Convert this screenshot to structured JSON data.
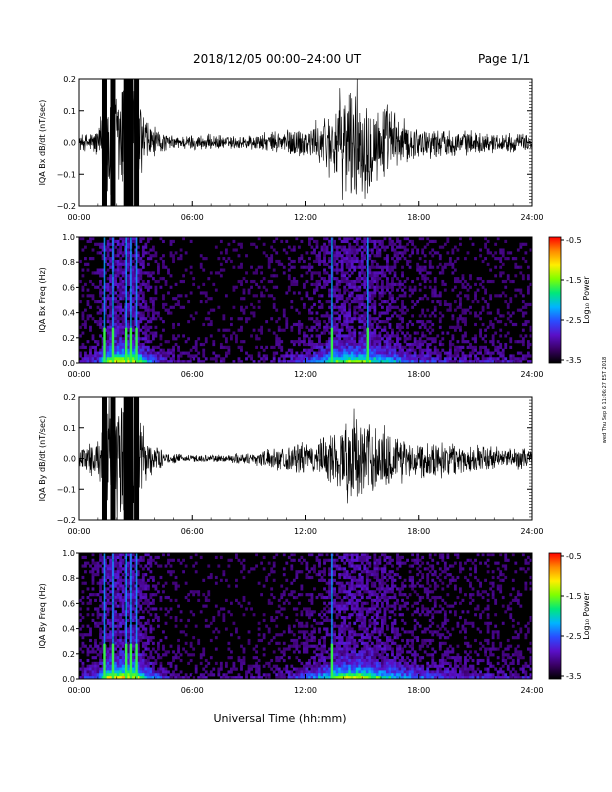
{
  "header": {
    "title": "2018/12/05  00:00–24:00 UT",
    "page": "Page 1/1"
  },
  "side_note": "wed Thu Sep 6 11:06:27 EST 2018",
  "colorbar": {
    "label": "Log₁₀ Power",
    "ticks": [
      "-0.5",
      "-1.5",
      "-2.5",
      "-3.5"
    ],
    "range": [
      -3.5,
      -0.5
    ],
    "colors": [
      "#000000",
      "#3a0066",
      "#5a10c8",
      "#2a4cff",
      "#00b4ff",
      "#00e87a",
      "#7fff00",
      "#ffee00",
      "#ff8a00",
      "#ff0000"
    ]
  },
  "xaxis": {
    "label": "Universal Time (hh:mm)",
    "ticks": [
      "00:00",
      "06:00",
      "12:00",
      "18:00",
      "24:00"
    ],
    "range_hours": [
      0,
      24
    ]
  },
  "chart_data": [
    {
      "type": "line",
      "ylabel": "IQA Bx dB/dt (nT/sec)",
      "ylim": [
        -0.2,
        0.2
      ],
      "yticks": [
        "0.2",
        "0.1",
        "0.0",
        "−0.1",
        "−0.2"
      ],
      "series": [
        {
          "x": [
            0,
            0.5,
            1.0,
            1.3,
            1.6,
            2.0,
            2.3,
            2.7,
            3.0,
            3.3,
            3.7,
            4.0,
            4.5,
            5.0,
            6.0,
            7.0,
            8.0,
            9.0,
            10.0,
            11.0,
            11.5,
            12.0,
            12.5,
            13.0,
            13.5,
            14.0,
            14.5,
            15.0,
            15.5,
            16.0,
            16.5,
            17.0,
            17.5,
            18.0,
            19.0,
            20.0,
            21.0,
            22.0,
            23.0,
            24.0
          ],
          "amplitude": [
            0.025,
            0.03,
            0.05,
            0.12,
            0.25,
            0.18,
            0.25,
            0.15,
            0.25,
            0.12,
            0.07,
            0.05,
            0.03,
            0.02,
            0.025,
            0.025,
            0.02,
            0.025,
            0.03,
            0.045,
            0.05,
            0.05,
            0.06,
            0.09,
            0.12,
            0.17,
            0.2,
            0.18,
            0.15,
            0.12,
            0.12,
            0.08,
            0.06,
            0.05,
            0.045,
            0.04,
            0.035,
            0.03,
            0.03,
            0.025
          ]
        }
      ]
    },
    {
      "type": "heatmap",
      "ylabel": "IQA Bx Freq (Hz)",
      "ylim": [
        0.0,
        1.0
      ],
      "yticks": [
        "1.0",
        "0.8",
        "0.6",
        "0.4",
        "0.2",
        "0.0"
      ],
      "bursts_hours": [
        1.35,
        1.8,
        2.5,
        2.75,
        3.05,
        13.4,
        15.3
      ],
      "activity_hours": [
        0,
        1,
        1.5,
        2,
        3,
        3.5,
        4,
        5,
        6,
        8,
        10,
        11,
        12,
        13,
        14,
        15,
        16,
        17,
        18,
        20,
        22,
        24
      ],
      "activity_level": [
        0.15,
        0.3,
        0.7,
        0.8,
        0.8,
        0.5,
        0.3,
        0.15,
        0.1,
        0.1,
        0.12,
        0.2,
        0.3,
        0.5,
        0.7,
        0.7,
        0.55,
        0.4,
        0.3,
        0.2,
        0.18,
        0.15
      ]
    },
    {
      "type": "line",
      "ylabel": "IQA By dB/dt (nT/sec)",
      "ylim": [
        -0.2,
        0.2
      ],
      "yticks": [
        "0.2",
        "0.1",
        "0.0",
        "−0.1",
        "−0.2"
      ],
      "series": [
        {
          "x": [
            0,
            0.5,
            1.0,
            1.3,
            1.6,
            2.0,
            2.3,
            2.7,
            3.0,
            3.3,
            3.7,
            4.0,
            4.5,
            5.0,
            6.0,
            7.0,
            8.0,
            9.0,
            10.0,
            11.0,
            11.5,
            12.0,
            12.5,
            13.0,
            13.5,
            14.0,
            14.5,
            15.0,
            15.5,
            16.0,
            16.5,
            17.0,
            17.5,
            18.0,
            19.0,
            20.0,
            21.0,
            22.0,
            23.0,
            24.0
          ],
          "amplitude": [
            0.045,
            0.05,
            0.06,
            0.12,
            0.25,
            0.2,
            0.25,
            0.18,
            0.25,
            0.12,
            0.08,
            0.05,
            0.02,
            0.015,
            0.012,
            0.012,
            0.015,
            0.02,
            0.03,
            0.04,
            0.05,
            0.05,
            0.055,
            0.07,
            0.1,
            0.13,
            0.15,
            0.14,
            0.12,
            0.11,
            0.1,
            0.08,
            0.07,
            0.06,
            0.06,
            0.05,
            0.045,
            0.04,
            0.035,
            0.03
          ]
        }
      ]
    },
    {
      "type": "heatmap",
      "ylabel": "IQA By Freq (Hz)",
      "ylim": [
        0.0,
        1.0
      ],
      "yticks": [
        "1.0",
        "0.8",
        "0.6",
        "0.4",
        "0.2",
        "0.0"
      ],
      "bursts_hours": [
        1.35,
        1.8,
        2.5,
        2.75,
        3.05,
        13.4
      ],
      "activity_hours": [
        0,
        1,
        1.5,
        2,
        3,
        3.5,
        4,
        5,
        6,
        8,
        10,
        11,
        12,
        13,
        14,
        15,
        16,
        17,
        18,
        20,
        22,
        24
      ],
      "activity_level": [
        0.2,
        0.35,
        0.75,
        0.85,
        0.85,
        0.55,
        0.35,
        0.15,
        0.1,
        0.1,
        0.12,
        0.2,
        0.3,
        0.5,
        0.75,
        0.75,
        0.6,
        0.45,
        0.35,
        0.25,
        0.2,
        0.18
      ]
    }
  ]
}
